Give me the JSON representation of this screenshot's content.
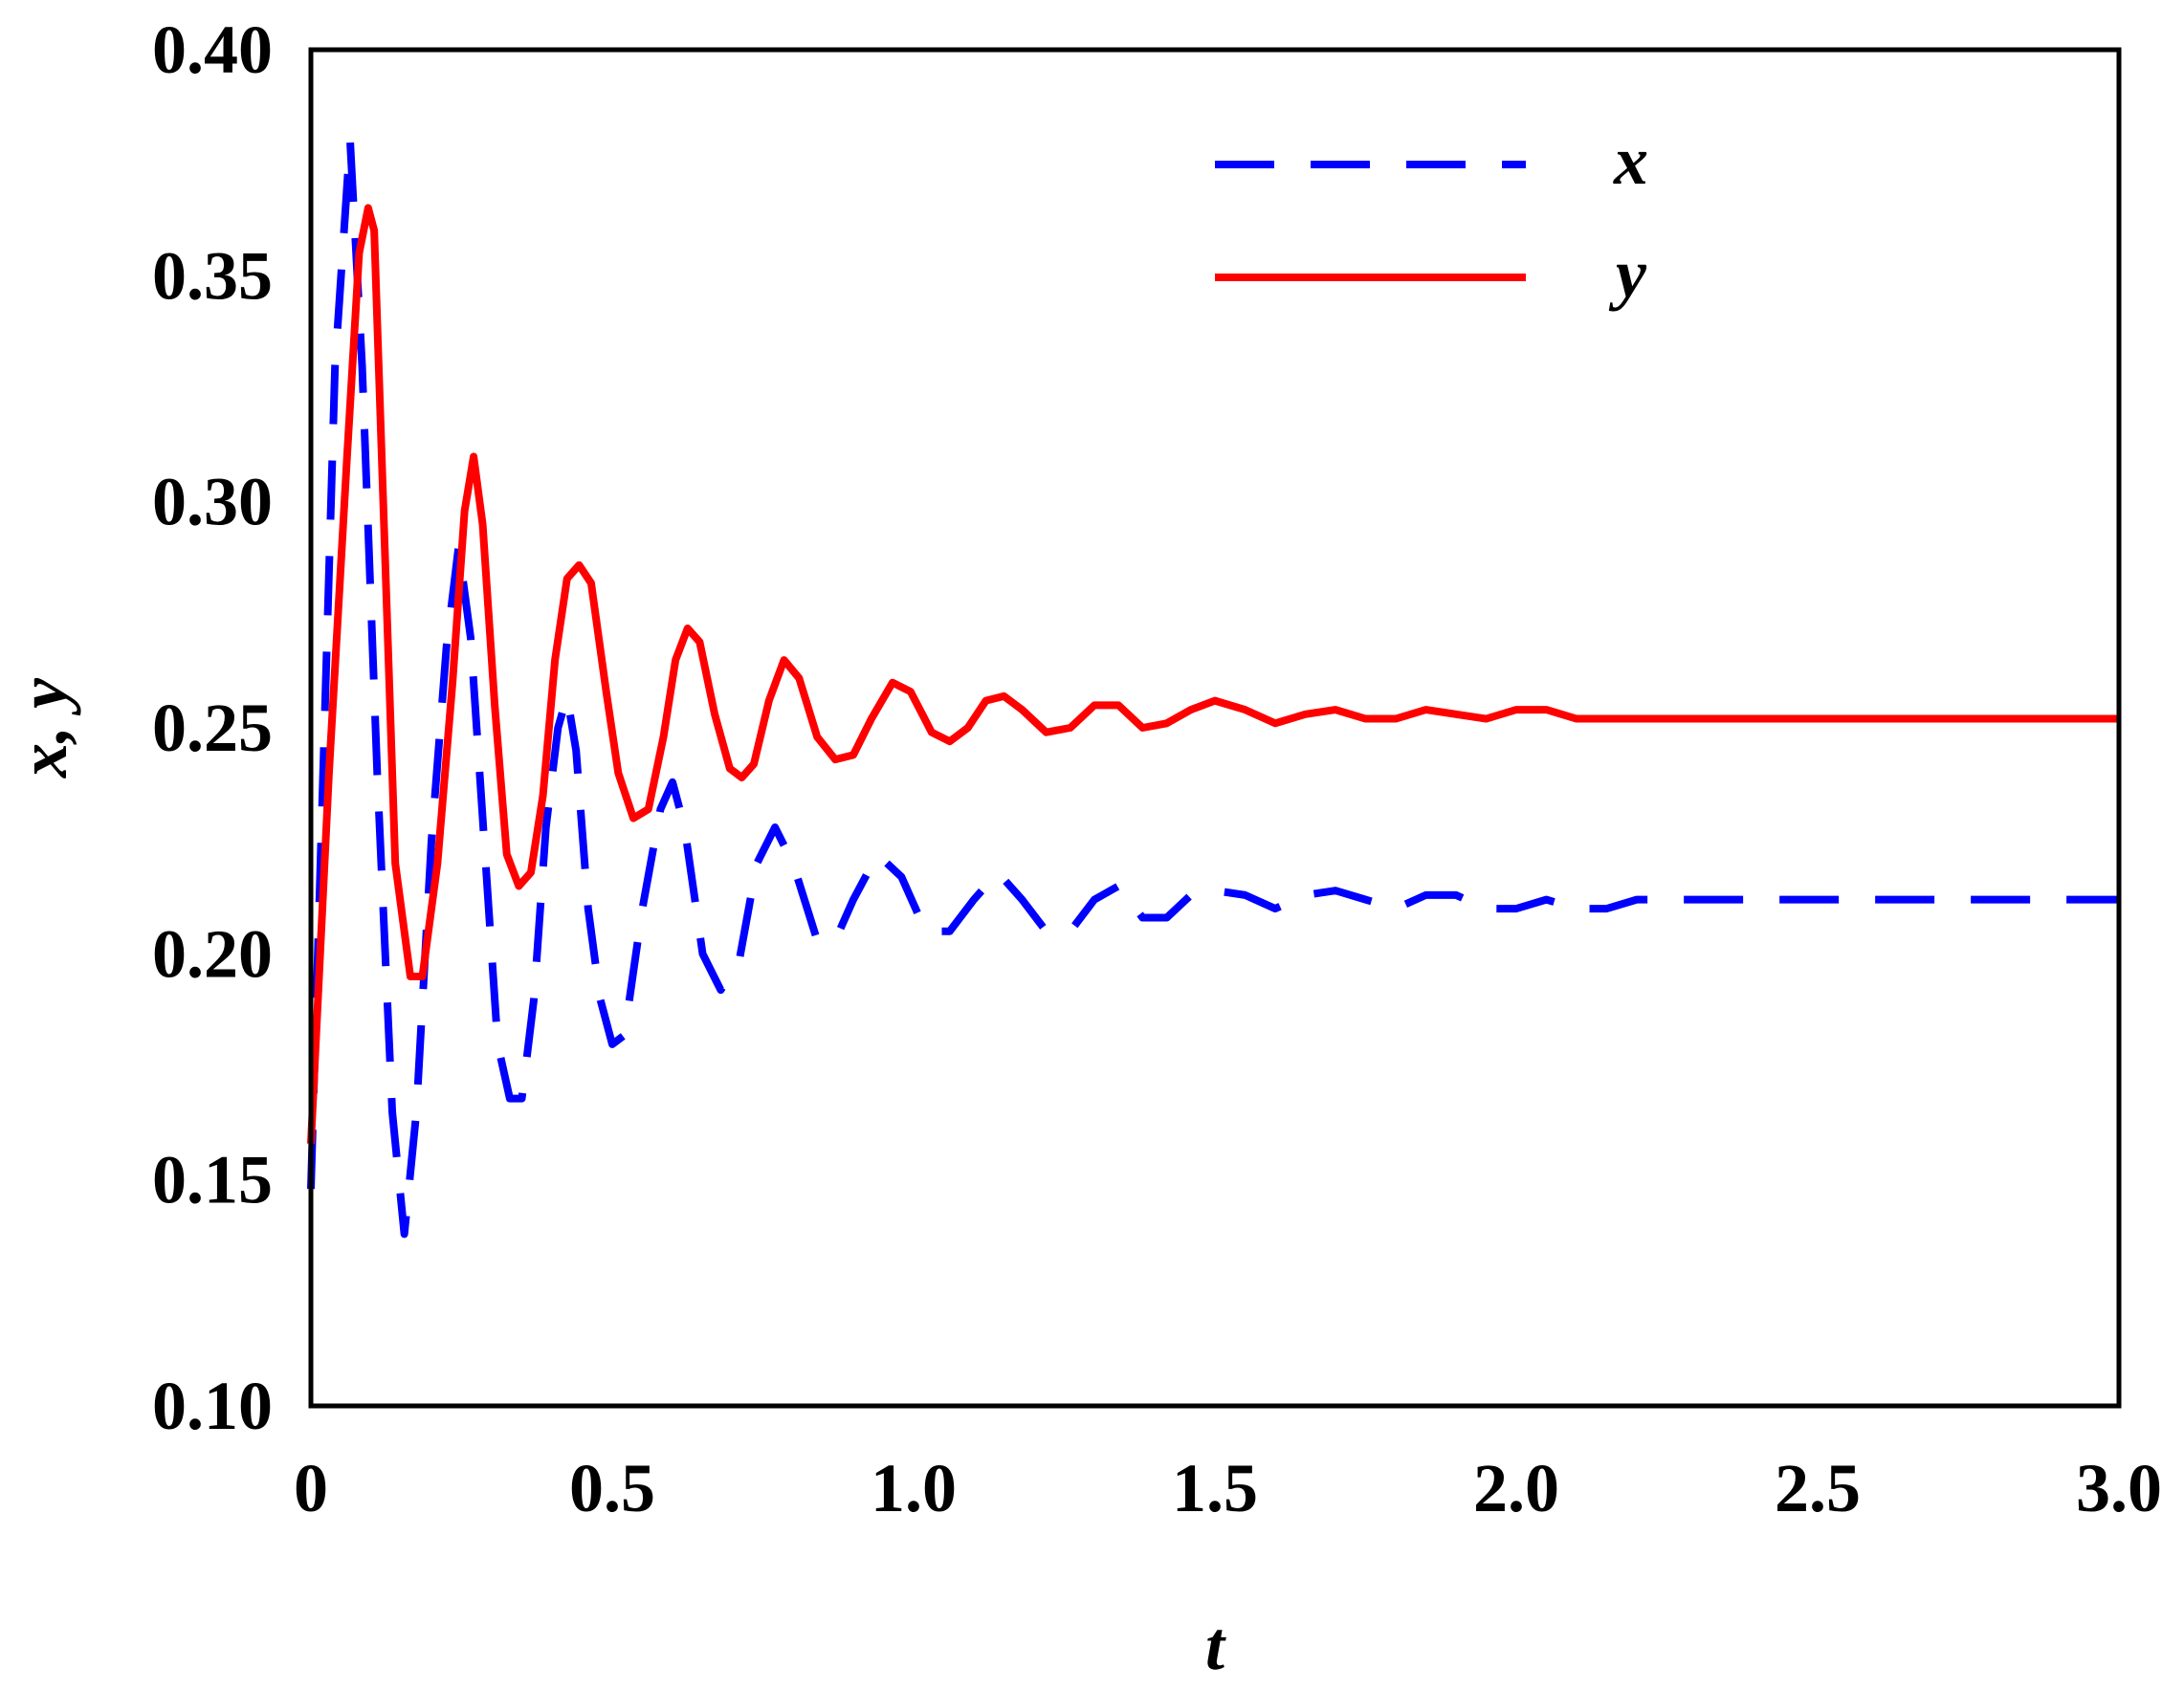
{
  "chart_data": {
    "type": "line",
    "xlabel": "t",
    "ylabel": "x, y",
    "xlim": [
      0,
      3.0
    ],
    "ylim": [
      0.1,
      0.4
    ],
    "xticks": [
      0,
      0.5,
      1.0,
      1.5,
      2.0,
      2.5,
      3.0
    ],
    "xtick_labels": [
      "0",
      "0.5",
      "1.0",
      "1.5",
      "2.0",
      "2.5",
      "3.0"
    ],
    "yticks": [
      0.1,
      0.15,
      0.2,
      0.25,
      0.3,
      0.35,
      0.4
    ],
    "ytick_labels": [
      "0.10",
      "0.15",
      "0.20",
      "0.25",
      "0.30",
      "0.35",
      "0.40"
    ],
    "grid": false,
    "legend_position": "top-right",
    "series": [
      {
        "name": "x",
        "color": "#0000ff",
        "style": "dashed",
        "points": [
          [
            0,
            0.148
          ],
          [
            0.04,
            0.33
          ],
          [
            0.065,
            0.38
          ],
          [
            0.085,
            0.33
          ],
          [
            0.11,
            0.24
          ],
          [
            0.135,
            0.165
          ],
          [
            0.155,
            0.138
          ],
          [
            0.175,
            0.165
          ],
          [
            0.2,
            0.225
          ],
          [
            0.225,
            0.268
          ],
          [
            0.245,
            0.29
          ],
          [
            0.265,
            0.27
          ],
          [
            0.29,
            0.22
          ],
          [
            0.31,
            0.18
          ],
          [
            0.33,
            0.168
          ],
          [
            0.35,
            0.168
          ],
          [
            0.37,
            0.19
          ],
          [
            0.39,
            0.228
          ],
          [
            0.41,
            0.25
          ],
          [
            0.425,
            0.257
          ],
          [
            0.44,
            0.245
          ],
          [
            0.46,
            0.21
          ],
          [
            0.48,
            0.19
          ],
          [
            0.5,
            0.18
          ],
          [
            0.52,
            0.182
          ],
          [
            0.55,
            0.21
          ],
          [
            0.58,
            0.232
          ],
          [
            0.6,
            0.238
          ],
          [
            0.62,
            0.228
          ],
          [
            0.65,
            0.2
          ],
          [
            0.68,
            0.192
          ],
          [
            0.71,
            0.198
          ],
          [
            0.74,
            0.22
          ],
          [
            0.77,
            0.228
          ],
          [
            0.8,
            0.22
          ],
          [
            0.84,
            0.203
          ],
          [
            0.87,
            0.203
          ],
          [
            0.9,
            0.212
          ],
          [
            0.94,
            0.222
          ],
          [
            0.98,
            0.217
          ],
          [
            1.02,
            0.205
          ],
          [
            1.06,
            0.205
          ],
          [
            1.1,
            0.212
          ],
          [
            1.14,
            0.218
          ],
          [
            1.18,
            0.212
          ],
          [
            1.22,
            0.205
          ],
          [
            1.26,
            0.205
          ],
          [
            1.3,
            0.212
          ],
          [
            1.34,
            0.215
          ],
          [
            1.38,
            0.208
          ],
          [
            1.42,
            0.208
          ],
          [
            1.46,
            0.213
          ],
          [
            1.5,
            0.214
          ],
          [
            1.55,
            0.213
          ],
          [
            1.6,
            0.21
          ],
          [
            1.65,
            0.213
          ],
          [
            1.7,
            0.214
          ],
          [
            1.75,
            0.212
          ],
          [
            1.8,
            0.21
          ],
          [
            1.85,
            0.213
          ],
          [
            1.9,
            0.213
          ],
          [
            1.95,
            0.21
          ],
          [
            2.0,
            0.21
          ],
          [
            2.05,
            0.212
          ],
          [
            2.1,
            0.21
          ],
          [
            2.15,
            0.21
          ],
          [
            2.2,
            0.212
          ],
          [
            3.0,
            0.212
          ]
        ]
      },
      {
        "name": "y",
        "color": "#ff0000",
        "style": "solid",
        "points": [
          [
            0,
            0.158
          ],
          [
            0.03,
            0.24
          ],
          [
            0.06,
            0.31
          ],
          [
            0.08,
            0.355
          ],
          [
            0.095,
            0.365
          ],
          [
            0.105,
            0.36
          ],
          [
            0.12,
            0.3
          ],
          [
            0.14,
            0.22
          ],
          [
            0.165,
            0.195
          ],
          [
            0.185,
            0.195
          ],
          [
            0.21,
            0.22
          ],
          [
            0.235,
            0.26
          ],
          [
            0.255,
            0.298
          ],
          [
            0.27,
            0.31
          ],
          [
            0.285,
            0.295
          ],
          [
            0.305,
            0.255
          ],
          [
            0.325,
            0.222
          ],
          [
            0.345,
            0.215
          ],
          [
            0.365,
            0.218
          ],
          [
            0.385,
            0.235
          ],
          [
            0.405,
            0.265
          ],
          [
            0.425,
            0.283
          ],
          [
            0.445,
            0.286
          ],
          [
            0.465,
            0.282
          ],
          [
            0.49,
            0.258
          ],
          [
            0.51,
            0.24
          ],
          [
            0.535,
            0.23
          ],
          [
            0.56,
            0.232
          ],
          [
            0.585,
            0.248
          ],
          [
            0.605,
            0.265
          ],
          [
            0.625,
            0.272
          ],
          [
            0.645,
            0.269
          ],
          [
            0.67,
            0.253
          ],
          [
            0.695,
            0.241
          ],
          [
            0.715,
            0.239
          ],
          [
            0.735,
            0.242
          ],
          [
            0.76,
            0.256
          ],
          [
            0.785,
            0.265
          ],
          [
            0.81,
            0.261
          ],
          [
            0.84,
            0.248
          ],
          [
            0.87,
            0.243
          ],
          [
            0.9,
            0.244
          ],
          [
            0.93,
            0.252
          ],
          [
            0.965,
            0.26
          ],
          [
            0.995,
            0.258
          ],
          [
            1.03,
            0.249
          ],
          [
            1.06,
            0.247
          ],
          [
            1.09,
            0.25
          ],
          [
            1.12,
            0.256
          ],
          [
            1.15,
            0.257
          ],
          [
            1.18,
            0.254
          ],
          [
            1.22,
            0.249
          ],
          [
            1.26,
            0.25
          ],
          [
            1.3,
            0.255
          ],
          [
            1.34,
            0.255
          ],
          [
            1.38,
            0.25
          ],
          [
            1.42,
            0.251
          ],
          [
            1.46,
            0.254
          ],
          [
            1.5,
            0.256
          ],
          [
            1.55,
            0.254
          ],
          [
            1.6,
            0.251
          ],
          [
            1.65,
            0.253
          ],
          [
            1.7,
            0.254
          ],
          [
            1.75,
            0.252
          ],
          [
            1.8,
            0.252
          ],
          [
            1.85,
            0.254
          ],
          [
            1.9,
            0.253
          ],
          [
            1.95,
            0.252
          ],
          [
            2.0,
            0.254
          ],
          [
            2.05,
            0.254
          ],
          [
            2.1,
            0.252
          ],
          [
            2.15,
            0.252
          ],
          [
            3.0,
            0.252
          ]
        ]
      }
    ]
  }
}
